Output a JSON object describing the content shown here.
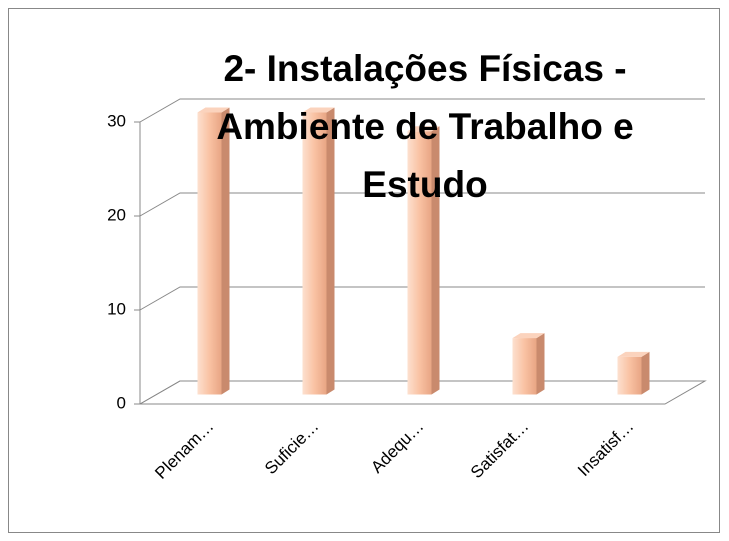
{
  "chart_data": {
    "type": "bar3d",
    "title": "2- Instalações Físicas - Ambiente de Trabalho e Estudo",
    "categories": [
      "Plenam…",
      "Suficie…",
      "Adequ…",
      "Satisfat…",
      "Insatisf…"
    ],
    "values": [
      30,
      30,
      28,
      6,
      4
    ],
    "color": "#f9c2a3",
    "ylim": [
      0,
      30
    ],
    "yticks": [
      0,
      10,
      20,
      30
    ],
    "grid": true
  }
}
